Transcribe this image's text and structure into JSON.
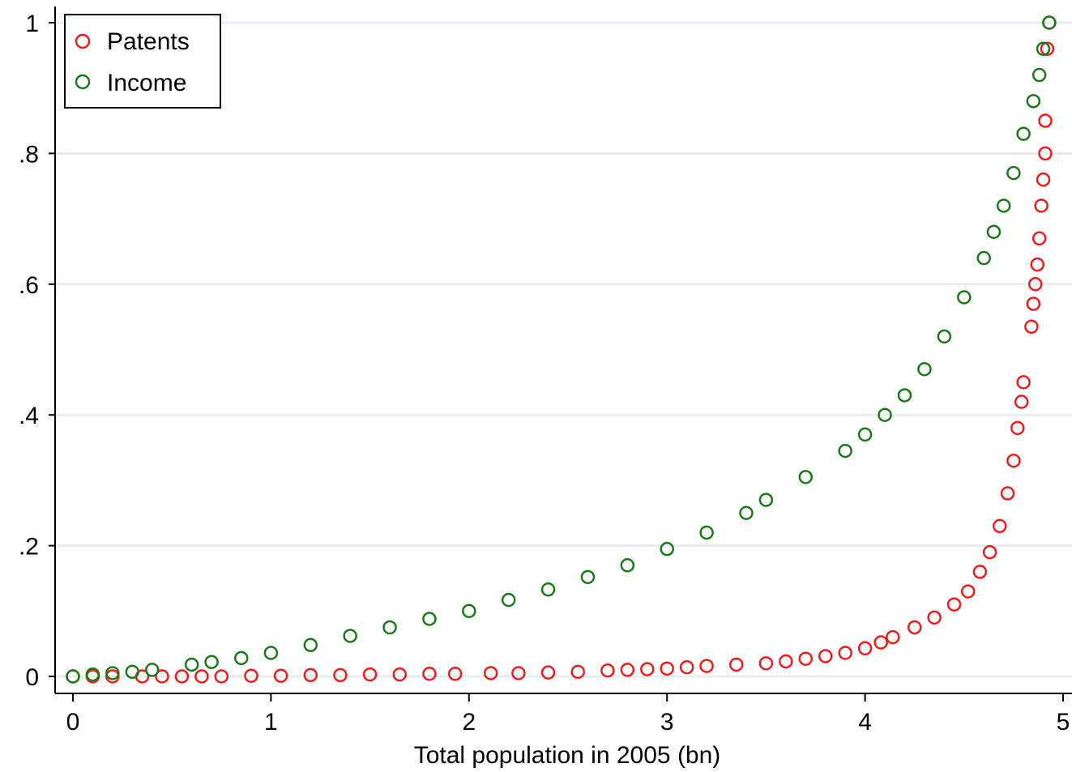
{
  "chart_data": {
    "type": "scatter",
    "title": "",
    "xlabel": "Total population in 2005 (bn)",
    "ylabel": "",
    "xlim": [
      0,
      5
    ],
    "ylim": [
      0,
      1
    ],
    "x_ticks": [
      0,
      1,
      2,
      3,
      4,
      5
    ],
    "x_tick_labels": [
      "0",
      "1",
      "2",
      "3",
      "4",
      "5"
    ],
    "y_ticks": [
      0,
      0.2,
      0.4,
      0.6,
      0.8,
      1
    ],
    "y_tick_labels": [
      "0",
      ".2",
      ".4",
      ".6",
      ".8",
      "1"
    ],
    "grid": true,
    "legend_position": "top-left",
    "series": [
      {
        "name": "Patents",
        "color": "#ee1c1c",
        "marker": "hollow-circle",
        "points": [
          [
            0.0,
            0.0
          ],
          [
            0.1,
            0.0
          ],
          [
            0.2,
            0.0
          ],
          [
            0.35,
            0.0
          ],
          [
            0.45,
            0.0
          ],
          [
            0.55,
            0.0
          ],
          [
            0.65,
            0.0
          ],
          [
            0.75,
            0.0
          ],
          [
            0.9,
            0.001
          ],
          [
            1.05,
            0.001
          ],
          [
            1.2,
            0.002
          ],
          [
            1.35,
            0.002
          ],
          [
            1.5,
            0.003
          ],
          [
            1.65,
            0.003
          ],
          [
            1.8,
            0.004
          ],
          [
            1.93,
            0.004
          ],
          [
            2.11,
            0.005
          ],
          [
            2.25,
            0.005
          ],
          [
            2.4,
            0.006
          ],
          [
            2.55,
            0.007
          ],
          [
            2.7,
            0.009
          ],
          [
            2.8,
            0.01
          ],
          [
            2.9,
            0.011
          ],
          [
            3.0,
            0.012
          ],
          [
            3.1,
            0.014
          ],
          [
            3.2,
            0.016
          ],
          [
            3.35,
            0.018
          ],
          [
            3.5,
            0.02
          ],
          [
            3.6,
            0.023
          ],
          [
            3.7,
            0.027
          ],
          [
            3.8,
            0.031
          ],
          [
            3.9,
            0.036
          ],
          [
            4.0,
            0.043
          ],
          [
            4.08,
            0.052
          ],
          [
            4.14,
            0.06
          ],
          [
            4.25,
            0.075
          ],
          [
            4.35,
            0.09
          ],
          [
            4.45,
            0.11
          ],
          [
            4.52,
            0.13
          ],
          [
            4.58,
            0.16
          ],
          [
            4.63,
            0.19
          ],
          [
            4.68,
            0.23
          ],
          [
            4.72,
            0.28
          ],
          [
            4.75,
            0.33
          ],
          [
            4.77,
            0.38
          ],
          [
            4.79,
            0.42
          ],
          [
            4.8,
            0.45
          ],
          [
            4.84,
            0.535
          ],
          [
            4.85,
            0.57
          ],
          [
            4.86,
            0.6
          ],
          [
            4.87,
            0.63
          ],
          [
            4.88,
            0.67
          ],
          [
            4.89,
            0.72
          ],
          [
            4.9,
            0.76
          ],
          [
            4.91,
            0.8
          ],
          [
            4.91,
            0.85
          ],
          [
            4.92,
            0.96
          ],
          [
            4.93,
            1.0
          ]
        ]
      },
      {
        "name": "Income",
        "color": "#1a7a1a",
        "marker": "hollow-circle",
        "points": [
          [
            0.0,
            0.0
          ],
          [
            0.1,
            0.003
          ],
          [
            0.2,
            0.005
          ],
          [
            0.3,
            0.007
          ],
          [
            0.4,
            0.01
          ],
          [
            0.6,
            0.018
          ],
          [
            0.7,
            0.022
          ],
          [
            0.85,
            0.028
          ],
          [
            1.0,
            0.036
          ],
          [
            1.2,
            0.048
          ],
          [
            1.4,
            0.062
          ],
          [
            1.6,
            0.075
          ],
          [
            1.8,
            0.088
          ],
          [
            2.0,
            0.1
          ],
          [
            2.2,
            0.117
          ],
          [
            2.4,
            0.133
          ],
          [
            2.6,
            0.152
          ],
          [
            2.8,
            0.17
          ],
          [
            3.0,
            0.195
          ],
          [
            3.2,
            0.22
          ],
          [
            3.4,
            0.25
          ],
          [
            3.5,
            0.27
          ],
          [
            3.7,
            0.305
          ],
          [
            3.9,
            0.345
          ],
          [
            4.0,
            0.37
          ],
          [
            4.1,
            0.4
          ],
          [
            4.2,
            0.43
          ],
          [
            4.3,
            0.47
          ],
          [
            4.4,
            0.52
          ],
          [
            4.5,
            0.58
          ],
          [
            4.6,
            0.64
          ],
          [
            4.65,
            0.68
          ],
          [
            4.7,
            0.72
          ],
          [
            4.75,
            0.77
          ],
          [
            4.8,
            0.83
          ],
          [
            4.85,
            0.88
          ],
          [
            4.88,
            0.92
          ],
          [
            4.9,
            0.96
          ],
          [
            4.93,
            1.0
          ]
        ]
      }
    ]
  }
}
